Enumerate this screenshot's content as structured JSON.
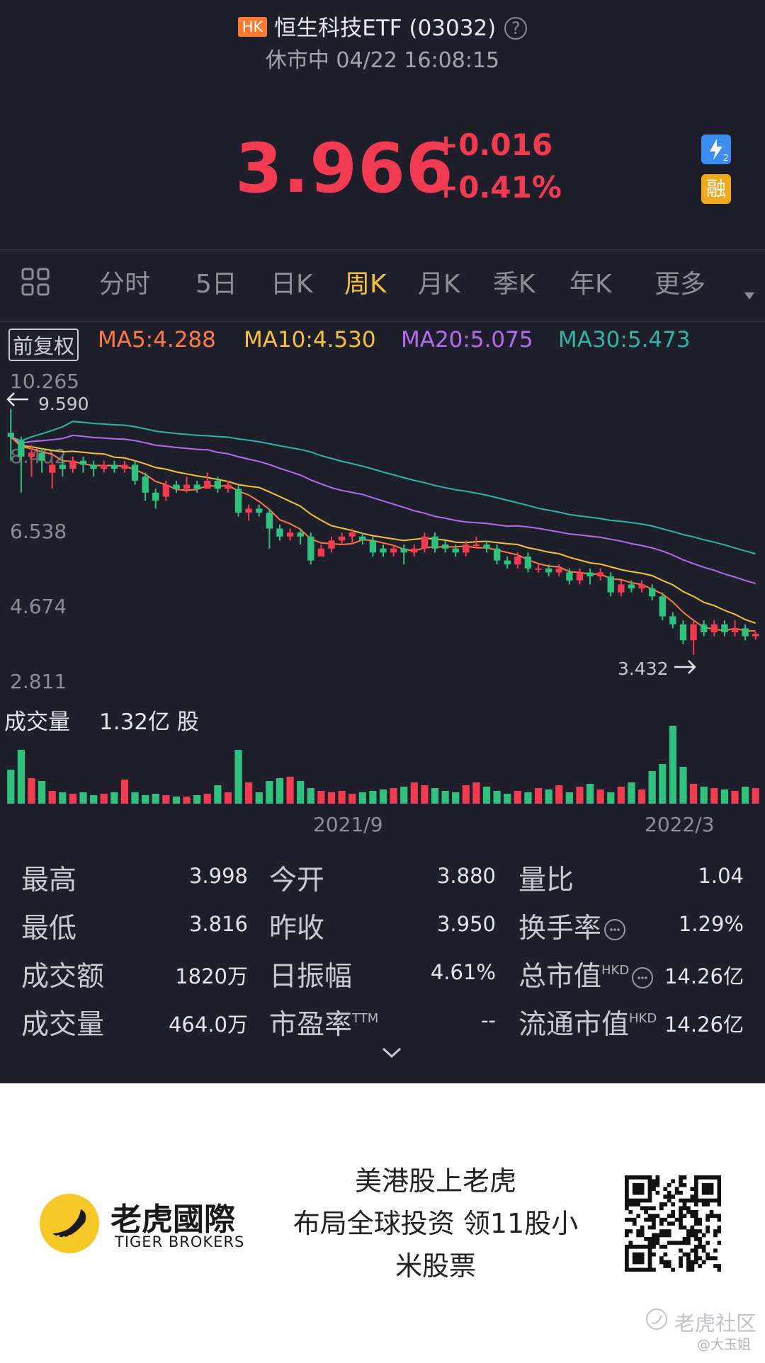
{
  "header": {
    "market_badge": "HK",
    "title": "恒生科技ETF (03032)",
    "help_icon": "?",
    "status": "休市中 04/22 16:08:15"
  },
  "quote": {
    "price": "3.966",
    "change": "+0.016",
    "change_pct": "+0.41%",
    "level2_badge": "level2-icon",
    "margin_badge": "融",
    "up_color": "#f23a50"
  },
  "tabs": {
    "grid_icon": "grid-icon",
    "items": [
      "分时",
      "5日",
      "日K",
      "周K",
      "月K",
      "季K",
      "年K",
      "更多"
    ],
    "active": "周K",
    "more_icon": "caret-down-icon"
  },
  "ma_bar": {
    "adjust": "前复权",
    "ma5": "MA5:4.288",
    "ma10": "MA10:4.530",
    "ma20": "MA20:5.075",
    "ma30": "MA30:5.473",
    "colors": {
      "ma5": "#ff7a45",
      "ma10": "#f5c23b",
      "ma20": "#b36bf0",
      "ma30": "#2fb5a8"
    }
  },
  "chart_data": {
    "type": "candlestick",
    "y_ticks": [
      "10.265",
      "8.402",
      "6.538",
      "4.674",
      "2.811"
    ],
    "high_label": "9.590",
    "low_label": "3.432",
    "x_ticks": [
      "2021/9",
      "2022/3"
    ],
    "ylim": [
      2.811,
      10.265
    ],
    "candles": [
      [
        9.0,
        8.9,
        9.6,
        8.3
      ],
      [
        8.8,
        8.4,
        8.9,
        7.5
      ],
      [
        8.4,
        8.5,
        8.7,
        7.9
      ],
      [
        8.5,
        8.3,
        8.6,
        8.0
      ],
      [
        8.0,
        8.2,
        8.3,
        7.6
      ],
      [
        8.2,
        8.1,
        8.4,
        7.9
      ],
      [
        8.1,
        8.3,
        8.4,
        8.0
      ],
      [
        8.3,
        8.2,
        8.4,
        8.0
      ],
      [
        8.2,
        8.1,
        8.3,
        7.9
      ],
      [
        8.1,
        8.2,
        8.3,
        8.0
      ],
      [
        8.2,
        8.1,
        8.3,
        8.0
      ],
      [
        8.1,
        8.2,
        8.3,
        8.0
      ],
      [
        8.2,
        7.8,
        8.3,
        7.7
      ],
      [
        7.9,
        7.5,
        8.0,
        7.3
      ],
      [
        7.5,
        7.3,
        7.6,
        7.1
      ],
      [
        7.4,
        7.7,
        7.8,
        7.3
      ],
      [
        7.7,
        7.6,
        7.8,
        7.5
      ],
      [
        7.6,
        7.7,
        7.9,
        7.5
      ],
      [
        7.7,
        7.6,
        7.8,
        7.5
      ],
      [
        7.6,
        7.8,
        8.0,
        7.6
      ],
      [
        7.8,
        7.6,
        7.9,
        7.5
      ],
      [
        7.6,
        7.7,
        7.8,
        7.5
      ],
      [
        7.6,
        7.0,
        7.7,
        6.9
      ],
      [
        7.0,
        7.1,
        7.2,
        6.8
      ],
      [
        7.1,
        7.0,
        7.2,
        6.9
      ],
      [
        7.0,
        6.6,
        7.1,
        6.1
      ],
      [
        6.6,
        6.4,
        6.7,
        6.3
      ],
      [
        6.4,
        6.5,
        6.6,
        6.3
      ],
      [
        6.5,
        6.4,
        6.6,
        6.2
      ],
      [
        6.4,
        5.8,
        6.5,
        5.7
      ],
      [
        5.9,
        6.1,
        6.2,
        5.9
      ],
      [
        6.1,
        6.3,
        6.4,
        6.0
      ],
      [
        6.3,
        6.4,
        6.5,
        6.2
      ],
      [
        6.4,
        6.5,
        6.6,
        6.2
      ],
      [
        6.4,
        6.3,
        6.5,
        6.2
      ],
      [
        6.3,
        6.0,
        6.4,
        5.9
      ],
      [
        6.1,
        6.0,
        6.2,
        5.9
      ],
      [
        6.0,
        6.1,
        6.2,
        5.9
      ],
      [
        6.1,
        6.0,
        6.2,
        5.7
      ],
      [
        6.0,
        6.1,
        6.2,
        5.9
      ],
      [
        6.1,
        6.4,
        6.5,
        6.0
      ],
      [
        6.4,
        6.1,
        6.5,
        6.0
      ],
      [
        6.2,
        6.1,
        6.3,
        6.0
      ],
      [
        6.1,
        6.0,
        6.2,
        5.9
      ],
      [
        6.0,
        6.2,
        6.3,
        5.9
      ],
      [
        6.2,
        6.2,
        6.4,
        6.1
      ],
      [
        6.2,
        6.1,
        6.3,
        6.0
      ],
      [
        6.1,
        5.8,
        6.2,
        5.7
      ],
      [
        5.8,
        5.7,
        5.9,
        5.6
      ],
      [
        5.7,
        5.9,
        6.0,
        5.6
      ],
      [
        5.9,
        5.6,
        6.0,
        5.5
      ],
      [
        5.6,
        5.6,
        5.7,
        5.5
      ],
      [
        5.6,
        5.5,
        5.7,
        5.4
      ],
      [
        5.5,
        5.6,
        5.7,
        5.4
      ],
      [
        5.5,
        5.3,
        5.6,
        5.2
      ],
      [
        5.3,
        5.5,
        5.6,
        5.2
      ],
      [
        5.5,
        5.4,
        5.6,
        5.2
      ],
      [
        5.4,
        5.5,
        5.6,
        5.3
      ],
      [
        5.4,
        5.0,
        5.5,
        4.9
      ],
      [
        5.0,
        5.2,
        5.3,
        4.9
      ],
      [
        5.2,
        5.1,
        5.3,
        5.0
      ],
      [
        5.1,
        5.2,
        5.3,
        5.0
      ],
      [
        5.1,
        4.9,
        5.2,
        4.8
      ],
      [
        4.9,
        4.4,
        5.0,
        4.3
      ],
      [
        4.4,
        4.2,
        4.5,
        4.1
      ],
      [
        4.2,
        3.8,
        4.3,
        3.7
      ],
      [
        3.8,
        4.2,
        4.3,
        3.432
      ],
      [
        4.2,
        4.0,
        4.3,
        3.9
      ],
      [
        4.0,
        4.2,
        4.3,
        3.9
      ],
      [
        4.2,
        4.0,
        4.3,
        3.9
      ],
      [
        4.0,
        4.1,
        4.3,
        3.9
      ],
      [
        4.1,
        3.9,
        4.2,
        3.8
      ],
      [
        3.9,
        3.966,
        4.0,
        3.816
      ]
    ],
    "volume": {
      "label": "成交量",
      "value": "1.32亿 股",
      "bars": [
        2.4,
        3.8,
        1.8,
        1.6,
        0.9,
        0.8,
        0.7,
        0.8,
        0.6,
        0.7,
        0.8,
        1.7,
        0.8,
        0.6,
        0.7,
        0.6,
        0.5,
        0.5,
        0.6,
        0.7,
        1.3,
        0.8,
        3.8,
        1.5,
        0.8,
        1.6,
        1.8,
        1.9,
        1.6,
        1.1,
        0.9,
        0.8,
        0.9,
        0.7,
        0.8,
        0.9,
        1.0,
        1.1,
        1.2,
        1.5,
        1.3,
        1.1,
        0.9,
        0.8,
        1.3,
        1.5,
        1.2,
        0.9,
        0.7,
        0.9,
        0.8,
        1.1,
        1.0,
        1.3,
        0.8,
        1.2,
        1.4,
        1.0,
        0.8,
        1.2,
        1.5,
        1.0,
        2.3,
        2.8,
        5.5,
        2.6,
        1.4,
        1.2,
        1.1,
        1.0,
        0.9,
        1.2,
        1.1
      ],
      "max": 5.5
    }
  },
  "stats": {
    "rows": [
      [
        {
          "label": "最高",
          "value": "3.998"
        },
        {
          "label": "今开",
          "value": "3.880"
        },
        {
          "label": "量比",
          "value": "1.04"
        }
      ],
      [
        {
          "label": "最低",
          "value": "3.816"
        },
        {
          "label": "昨收",
          "value": "3.950"
        },
        {
          "label": "换手率",
          "value": "1.29%"
        }
      ],
      [
        {
          "label": "成交额",
          "value": "1820万"
        },
        {
          "label": "日振幅",
          "value": "4.61%"
        },
        {
          "label": "总市值",
          "value": "14.26亿",
          "sup": "HKD"
        }
      ],
      [
        {
          "label": "成交量",
          "value": "464.0万"
        },
        {
          "label": "市盈率",
          "value": "--",
          "sup": "TTM"
        },
        {
          "label": "流通市值",
          "value": "14.26亿",
          "sup": "HKD"
        }
      ]
    ],
    "expand_icon": "chevron-down-icon"
  },
  "ad": {
    "brand_cn": "老虎國際",
    "brand_en": "TIGER BROKERS",
    "slogan_line1": "美港股上老虎",
    "slogan_line2": "布局全球投资 领11股小",
    "slogan_line3": "米股票",
    "qr_icon": "qr-code-icon",
    "watermark": "老虎社区",
    "watermark_user": "@大玉姐"
  }
}
